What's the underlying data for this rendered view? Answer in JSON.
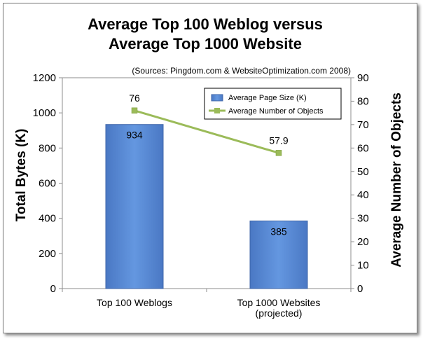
{
  "chart_data": {
    "type": "bar",
    "title_lines": [
      "Average Top 100 Weblog versus",
      "Average Top 1000 Website"
    ],
    "subtitle": "(Sources: Pingdom.com & WebsiteOptimization.com 2008)",
    "categories": [
      {
        "lines": [
          "Top 100 Weblogs"
        ]
      },
      {
        "lines": [
          "Top 1000 Websites",
          "(projected)"
        ]
      }
    ],
    "ylabel": "Total Bytes (K)",
    "y2label": "Average Number of Objects",
    "ylim": [
      0,
      1200
    ],
    "y_ticks": [
      0,
      200,
      400,
      600,
      800,
      1000,
      1200
    ],
    "y2lim": [
      0,
      90
    ],
    "y2_ticks": [
      0,
      10,
      20,
      30,
      40,
      50,
      60,
      70,
      80,
      90
    ],
    "grid": false,
    "legend_position": "top-right",
    "series": [
      {
        "name": "Average Page Size (K)",
        "kind": "bar",
        "axis": "left",
        "color": "#5b8bd6",
        "values": [
          934,
          385
        ],
        "labels": [
          "934",
          "385"
        ]
      },
      {
        "name": "Average Number of Objects",
        "kind": "line",
        "axis": "right",
        "color": "#9bbb59",
        "values": [
          76,
          57.9
        ],
        "labels": [
          "76",
          "57.9"
        ]
      }
    ]
  }
}
